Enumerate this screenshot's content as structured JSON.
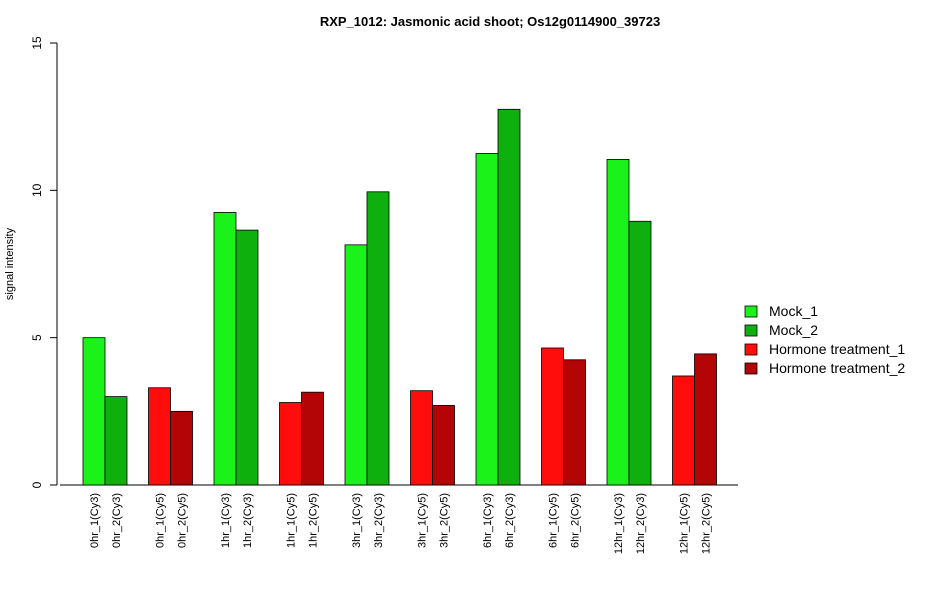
{
  "chart_data": {
    "type": "bar",
    "title": "RXP_1012: Jasmonic acid shoot; Os12g0114900_39723",
    "xlabel": "",
    "ylabel": "signal intensity",
    "ylim": [
      0,
      15
    ],
    "yticks": [
      0,
      5,
      10,
      15
    ],
    "grid": false,
    "legend_position": "right",
    "series": [
      {
        "name": "Mock_1",
        "color": "#1AF21A"
      },
      {
        "name": "Mock_2",
        "color": "#0DB00D"
      },
      {
        "name": "Hormone treatment_1",
        "color": "#FF0D0D"
      },
      {
        "name": "Hormone treatment_2",
        "color": "#B30505"
      }
    ],
    "groups": [
      {
        "bars": [
          {
            "label": "0hr_1(Cy3)",
            "value": 5.0,
            "series": 0
          },
          {
            "label": "0hr_2(Cy3)",
            "value": 3.0,
            "series": 1
          }
        ]
      },
      {
        "bars": [
          {
            "label": "0hr_1(Cy5)",
            "value": 3.3,
            "series": 2
          },
          {
            "label": "0hr_2(Cy5)",
            "value": 2.5,
            "series": 3
          }
        ]
      },
      {
        "bars": [
          {
            "label": "1hr_1(Cy3)",
            "value": 9.25,
            "series": 0
          },
          {
            "label": "1hr_2(Cy3)",
            "value": 8.65,
            "series": 1
          }
        ]
      },
      {
        "bars": [
          {
            "label": "1hr_1(Cy5)",
            "value": 2.8,
            "series": 2
          },
          {
            "label": "1hr_2(Cy5)",
            "value": 3.15,
            "series": 3
          }
        ]
      },
      {
        "bars": [
          {
            "label": "3hr_1(Cy3)",
            "value": 8.15,
            "series": 0
          },
          {
            "label": "3hr_2(Cy3)",
            "value": 9.95,
            "series": 1
          }
        ]
      },
      {
        "bars": [
          {
            "label": "3hr_1(Cy5)",
            "value": 3.2,
            "series": 2
          },
          {
            "label": "3hr_2(Cy5)",
            "value": 2.7,
            "series": 3
          }
        ]
      },
      {
        "bars": [
          {
            "label": "6hr_1(Cy3)",
            "value": 11.25,
            "series": 0
          },
          {
            "label": "6hr_2(Cy3)",
            "value": 12.75,
            "series": 1
          }
        ]
      },
      {
        "bars": [
          {
            "label": "6hr_1(Cy5)",
            "value": 4.65,
            "series": 2
          },
          {
            "label": "6hr_2(Cy5)",
            "value": 4.25,
            "series": 3
          }
        ]
      },
      {
        "bars": [
          {
            "label": "12hr_1(Cy3)",
            "value": 11.05,
            "series": 0
          },
          {
            "label": "12hr_2(Cy3)",
            "value": 8.95,
            "series": 1
          }
        ]
      },
      {
        "bars": [
          {
            "label": "12hr_1(Cy5)",
            "value": 3.7,
            "series": 2
          },
          {
            "label": "12hr_2(Cy5)",
            "value": 4.45,
            "series": 3
          }
        ]
      }
    ]
  }
}
